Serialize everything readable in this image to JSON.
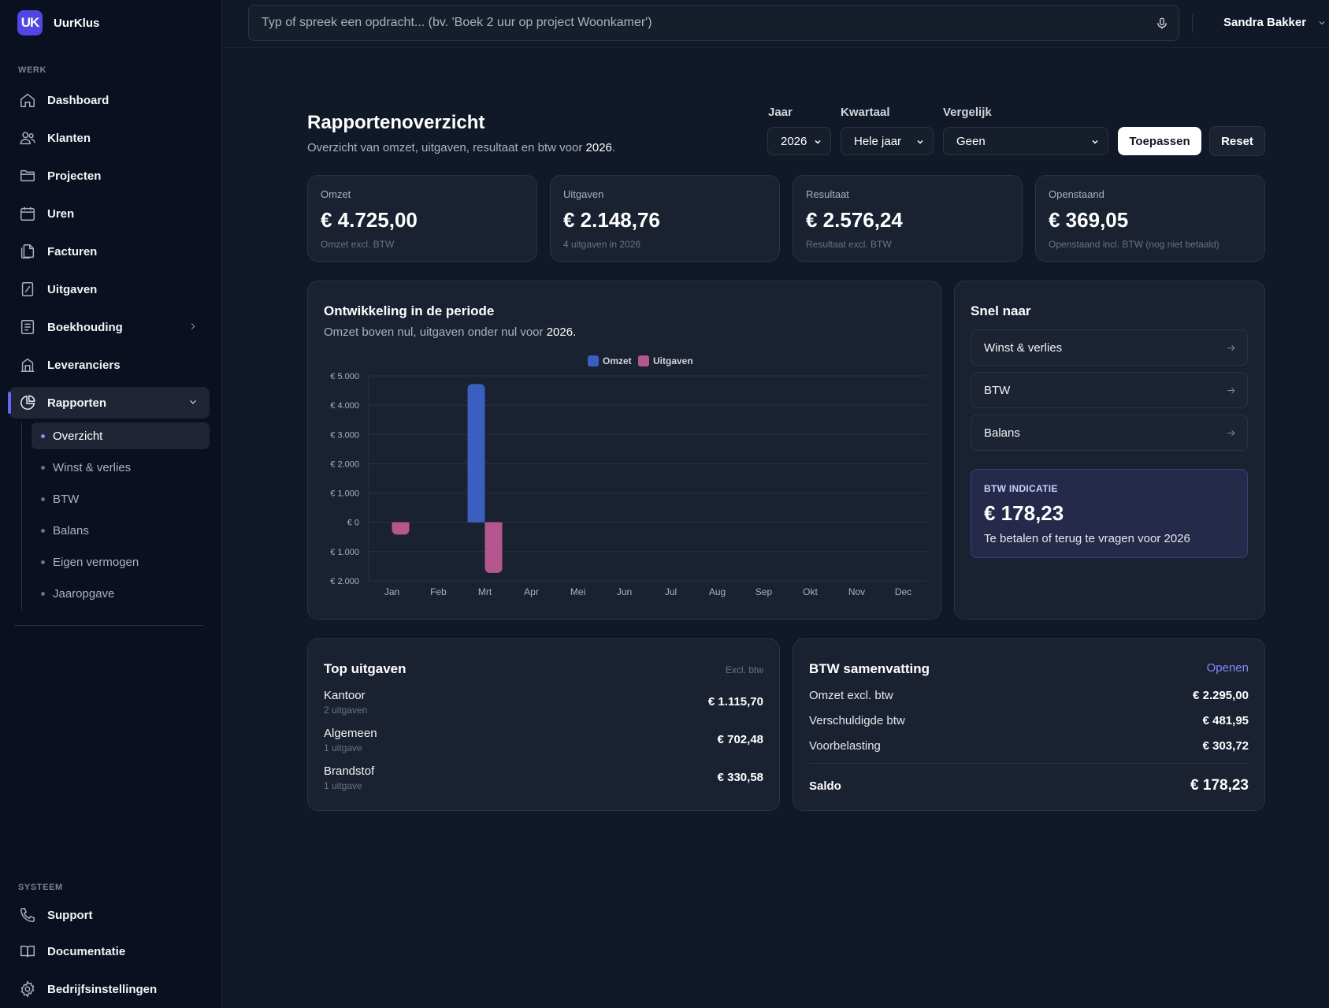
{
  "brand": {
    "logo": "UK",
    "name": "UurKlus"
  },
  "sidebar": {
    "section_work": "WERK",
    "items": [
      {
        "label": "Dashboard",
        "icon": "home-icon"
      },
      {
        "label": "Klanten",
        "icon": "users-icon"
      },
      {
        "label": "Projecten",
        "icon": "folder-icon"
      },
      {
        "label": "Uren",
        "icon": "calendar-icon"
      },
      {
        "label": "Facturen",
        "icon": "documents-icon"
      },
      {
        "label": "Uitgaven",
        "icon": "receipt-icon"
      },
      {
        "label": "Boekhouding",
        "icon": "ledger-icon"
      },
      {
        "label": "Leveranciers",
        "icon": "building-icon"
      },
      {
        "label": "Rapporten",
        "icon": "pie-chart-icon"
      }
    ],
    "sub_items": [
      "Overzicht",
      "Winst & verlies",
      "BTW",
      "Balans",
      "Eigen vermogen",
      "Jaaropgave"
    ],
    "section_system": "SYSTEEM",
    "system_items": [
      {
        "label": "Support",
        "icon": "phone-icon"
      },
      {
        "label": "Documentatie",
        "icon": "book-icon"
      },
      {
        "label": "Bedrijfsinstellingen",
        "icon": "gear-icon"
      }
    ]
  },
  "topbar": {
    "search_placeholder": "Typ of spreek een opdracht... (bv. 'Boek 2 uur op project Woonkamer')",
    "user": "Sandra Bakker"
  },
  "header": {
    "title": "Rapportenoverzicht",
    "subtitle_prefix": "Overzicht van omzet, uitgaven, resultaat en btw voor",
    "year": "2026",
    "filters": {
      "jaar_label": "Jaar",
      "jaar_value": "2026",
      "kwartaal_label": "Kwartaal",
      "kwartaal_value": "Hele jaar",
      "vergelijk_label": "Vergelijk",
      "vergelijk_value": "Geen"
    },
    "apply": "Toepassen",
    "reset": "Reset"
  },
  "kpis": [
    {
      "label": "Omzet",
      "value": "€ 4.725,00",
      "sub": "Omzet excl. BTW"
    },
    {
      "label": "Uitgaven",
      "value": "€ 2.148,76",
      "sub": "4 uitgaven in 2026"
    },
    {
      "label": "Resultaat",
      "value": "€ 2.576,24",
      "sub": "Resultaat excl. BTW"
    },
    {
      "label": "Openstaand",
      "value": "€ 369,05",
      "sub": "Openstaand incl. BTW (nog niet betaald)"
    }
  ],
  "chart_card": {
    "title": "Ontwikkeling in de periode",
    "subtitle_prefix": "Omzet boven nul, uitgaven onder nul voor",
    "year": "2026."
  },
  "chart_data": {
    "type": "bar",
    "categories": [
      "Jan",
      "Feb",
      "Mrt",
      "Apr",
      "Mei",
      "Jun",
      "Jul",
      "Aug",
      "Sep",
      "Okt",
      "Nov",
      "Dec"
    ],
    "series": [
      {
        "name": "Omzet",
        "color": "#3b5fc0",
        "values": [
          0,
          0,
          4725,
          0,
          0,
          0,
          0,
          0,
          0,
          0,
          0,
          0
        ]
      },
      {
        "name": "Uitgaven",
        "color": "#b5578f",
        "values": [
          -420,
          0,
          -1729,
          0,
          0,
          0,
          0,
          0,
          0,
          0,
          0,
          0
        ]
      }
    ],
    "ylim": [
      -2000,
      5000
    ],
    "yticks": [
      5000,
      4000,
      3000,
      2000,
      1000,
      0,
      -1000,
      -2000
    ],
    "ytick_labels": [
      "€ 5.000",
      "€ 4.000",
      "€ 3.000",
      "€ 2.000",
      "€ 1.000",
      "€ 0",
      "€ 1.000",
      "€ 2.000"
    ],
    "legend": "top-center",
    "grid": true
  },
  "quick_links": {
    "title": "Snel naar",
    "items": [
      "Winst & verlies",
      "BTW",
      "Balans"
    ]
  },
  "btw_indicatie": {
    "label": "BTW INDICATIE",
    "value": "€ 178,23",
    "sub": "Te betalen of terug te vragen voor 2026"
  },
  "top_uitgaven": {
    "title": "Top uitgaven",
    "note": "Excl. btw",
    "rows": [
      {
        "label": "Kantoor",
        "sub": "2 uitgaven",
        "value": "€ 1.115,70"
      },
      {
        "label": "Algemeen",
        "sub": "1 uitgave",
        "value": "€ 702,48"
      },
      {
        "label": "Brandstof",
        "sub": "1 uitgave",
        "value": "€ 330,58"
      }
    ]
  },
  "btw_samenvatting": {
    "title": "BTW samenvatting",
    "link": "Openen",
    "rows": [
      {
        "label": "Omzet excl. btw",
        "value": "€ 2.295,00"
      },
      {
        "label": "Verschuldigde btw",
        "value": "€ 481,95"
      },
      {
        "label": "Voorbelasting",
        "value": "€ 303,72"
      }
    ],
    "saldo_label": "Saldo",
    "saldo_value": "€ 178,23"
  },
  "colors": {
    "accent": "#6366f1",
    "omzet": "#3b5fc0",
    "uitgaven": "#b5578f",
    "link": "#818cf8"
  }
}
